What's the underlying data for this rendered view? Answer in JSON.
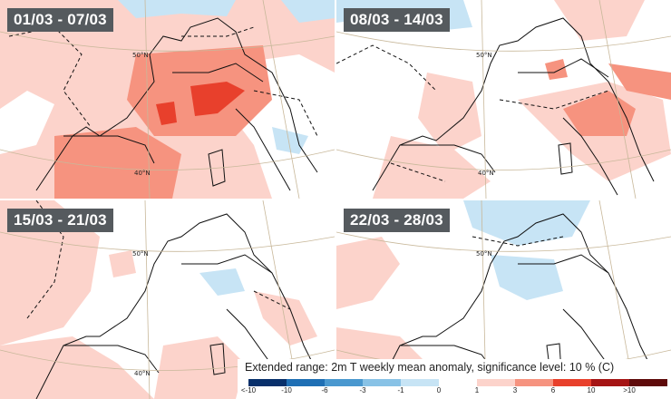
{
  "panels": [
    {
      "label": "01/03 - 07/03"
    },
    {
      "label": "08/03 - 14/03"
    },
    {
      "label": "15/03 - 21/03"
    },
    {
      "label": "22/03 - 28/03"
    }
  ],
  "lat_labels": {
    "lat50": "50°N",
    "lat40": "40°N"
  },
  "legend": {
    "title": "Extended range: 2m T weekly mean anomaly, significance level: 10 % (C)",
    "ticks": [
      "<-10",
      "-10",
      "-6",
      "-3",
      "-1",
      "0",
      "1",
      "3",
      "6",
      "10",
      ">10"
    ],
    "colors": [
      "#08306b",
      "#1f6fb4",
      "#4a98cf",
      "#88c2e6",
      "#c7e4f5",
      "#ffffff",
      "#fcd3cb",
      "#f6937f",
      "#e8402c",
      "#a51414",
      "#5e0a0a"
    ]
  },
  "fill_colors": {
    "light_red": "#fcd3cb",
    "mid_red": "#f6937f",
    "red": "#e8402c",
    "light_blue": "#c7e4f5"
  }
}
